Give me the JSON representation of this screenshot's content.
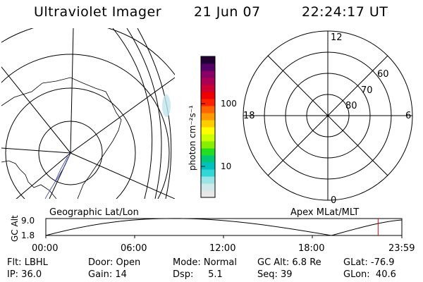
{
  "header": {
    "instrument": "Ultraviolet Imager",
    "date": "21 Jun 07",
    "time": "22:24:17 UT"
  },
  "colorbar": {
    "unit_label": "photon cm⁻²s⁻¹",
    "ticks": [
      "100",
      "10"
    ],
    "colors": [
      "#e8e8e8",
      "#cfe9ea",
      "#99e4e6",
      "#33d6d6",
      "#00c0c0",
      "#00c878",
      "#22dd22",
      "#88ee00",
      "#ccff00",
      "#ffff00",
      "#ffcc00",
      "#ff9900",
      "#ff6600",
      "#ff2200",
      "#ee0000",
      "#cc0033",
      "#aa0055",
      "#880066",
      "#550066",
      "#220033"
    ]
  },
  "geo_panel": {
    "label": "Geographic Lat/Lon"
  },
  "apex_panel": {
    "label": "Apex MLat/MLT",
    "mlt_labels": {
      "top": "12",
      "left": "18",
      "right": "6",
      "bottom": "0"
    },
    "lat_labels": [
      "60",
      "70",
      "80"
    ]
  },
  "altitude_plot": {
    "ylabel": "GC Alt",
    "yticks": [
      "9.0",
      "1.8"
    ],
    "xticks": [
      "00:00",
      "06:00",
      "12:00",
      "18:00",
      "23:59"
    ],
    "marker_time": "22:24",
    "marker_color": "#dd0000"
  },
  "status": {
    "filter": "Flt: LBHL",
    "ip": "IP: 36.0",
    "door": "Door: Open",
    "gain": "Gain: 14",
    "mode": "Mode: Normal",
    "dsp": "Dsp:     5.1",
    "gc_alt": "GC Alt: 6.8 Re",
    "seq": "Seq: 39",
    "glat": "GLat: -76.9",
    "glon": "GLon:  40.6"
  }
}
